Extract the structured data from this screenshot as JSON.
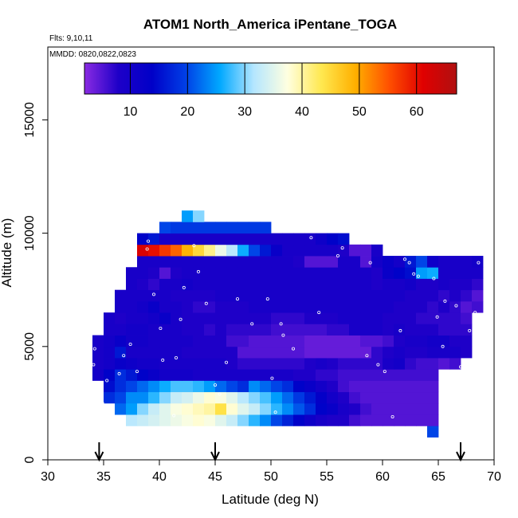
{
  "chart_data": {
    "type": "heatmap",
    "title": "ATOM1 North_America iPentane_TOGA",
    "flights_label": "Flts: 9,10,11",
    "dates_label": "MMDD: 0820,0822,0823",
    "xlabel": "Latitude (deg N)",
    "ylabel": "Altitude (m)",
    "xlim": [
      30,
      70
    ],
    "ylim": [
      0,
      17500
    ],
    "x_ticks": [
      30,
      35,
      40,
      45,
      50,
      55,
      60,
      65,
      70
    ],
    "y_ticks": [
      0,
      5000,
      10000,
      15000
    ],
    "colorbar": {
      "range": [
        2,
        67
      ],
      "ticks": [
        10,
        20,
        30,
        40,
        50,
        60
      ],
      "colors": [
        "#8a2be2",
        "#1e00c8",
        "#0000c8",
        "#0040e6",
        "#00a8ff",
        "#b4e6ff",
        "#ffffe0",
        "#ffe850",
        "#ffb000",
        "#ff5000",
        "#e00000",
        "#b01010"
      ]
    },
    "arrow_latitudes": [
      34.6,
      45.0,
      67.0
    ],
    "cell_size": {
      "lat": 1.0,
      "alt_m": 500
    },
    "rows": [
      {
        "alt": 1250,
        "lat_start": 64,
        "values": [
          20
        ]
      },
      {
        "alt": 1750,
        "lat_start": 37,
        "values": [
          32,
          33,
          34,
          35,
          36,
          37,
          38,
          37,
          35,
          33,
          30,
          27,
          24,
          20,
          17,
          14,
          11,
          9,
          8,
          8,
          6,
          5,
          5,
          5,
          5,
          5,
          5,
          5
        ]
      },
      {
        "alt": 2250,
        "lat_start": 36,
        "values": [
          22,
          25,
          30,
          33,
          35,
          37,
          38,
          39,
          40,
          44,
          38,
          35,
          33,
          30,
          27,
          24,
          21,
          18,
          14,
          12,
          9,
          8,
          6,
          5,
          5,
          5,
          5,
          5,
          5
        ]
      },
      {
        "alt": 2750,
        "lat_start": 35,
        "values": [
          18,
          20,
          24,
          24,
          27,
          30,
          33,
          34,
          36,
          38,
          37,
          35,
          32,
          30,
          28,
          25,
          22,
          19,
          16,
          13,
          10,
          8,
          6,
          5,
          5,
          5,
          5,
          5,
          5,
          5
        ]
      },
      {
        "alt": 3250,
        "lat_start": 35,
        "values": [
          15,
          18,
          20,
          22,
          24,
          26,
          28,
          28,
          27,
          25,
          22,
          20,
          18,
          24,
          22,
          20,
          18,
          14,
          12,
          10,
          8,
          6,
          5,
          5,
          5,
          5,
          5,
          5,
          5,
          5
        ]
      },
      {
        "alt": 3750,
        "lat_start": 34,
        "values": [
          10,
          14,
          18,
          16,
          14,
          12,
          10,
          10,
          10,
          9,
          9,
          9,
          9,
          9,
          9,
          9,
          9,
          9,
          8,
          8,
          7,
          7,
          6,
          6,
          6,
          6,
          6,
          6,
          6,
          6,
          6
        ]
      },
      {
        "alt": 4250,
        "lat_start": 34,
        "values": [
          9,
          10,
          12,
          11,
          10,
          10,
          9,
          9,
          9,
          9,
          9,
          9,
          8,
          7,
          7,
          7,
          7,
          7,
          7,
          8,
          9,
          8,
          7,
          7,
          7,
          7,
          9,
          10,
          7,
          6,
          6,
          5,
          6
        ]
      },
      {
        "alt": 4750,
        "lat_start": 34,
        "values": [
          9,
          10,
          16,
          9,
          9,
          9,
          9,
          9,
          8,
          8,
          8,
          8,
          8,
          5,
          5,
          5,
          5,
          5,
          5,
          4,
          4,
          4,
          4,
          4,
          4,
          7,
          8,
          9,
          8,
          8,
          9,
          9,
          9,
          8
        ]
      },
      {
        "alt": 5250,
        "lat_start": 34,
        "values": [
          9,
          10,
          12,
          10,
          10,
          9,
          9,
          9,
          9,
          8,
          8,
          8,
          6,
          6,
          5,
          5,
          5,
          5,
          5,
          4,
          4,
          4,
          4,
          4,
          5,
          5,
          6,
          8,
          9,
          9,
          10,
          10,
          8,
          8
        ]
      },
      {
        "alt": 5750,
        "lat_start": 35,
        "values": [
          9,
          9,
          10,
          10,
          9,
          9,
          9,
          8,
          8,
          7,
          8,
          7,
          7,
          7,
          7,
          6,
          6,
          6,
          6,
          6,
          7,
          7,
          9,
          9,
          9,
          8,
          9,
          8,
          8,
          8,
          7,
          7,
          7
        ]
      },
      {
        "alt": 6250,
        "lat_start": 35,
        "values": [
          9,
          8,
          9,
          9,
          10,
          12,
          9,
          8,
          8,
          8,
          8,
          8,
          8,
          8,
          8,
          7,
          7,
          7,
          8,
          8,
          8,
          9,
          9,
          9,
          9,
          8,
          8,
          8,
          7,
          7,
          7,
          7,
          6
        ]
      },
      {
        "alt": 6750,
        "lat_start": 36,
        "values": [
          9,
          9,
          10,
          12,
          9,
          9,
          8,
          7,
          7,
          8,
          8,
          8,
          9,
          9,
          9,
          9,
          9,
          9,
          9,
          9,
          9,
          9,
          9,
          9,
          9,
          8,
          8,
          8,
          7,
          8,
          7,
          5,
          6
        ]
      },
      {
        "alt": 7250,
        "lat_start": 36,
        "values": [
          9,
          9,
          9,
          9,
          9,
          8,
          8,
          8,
          8,
          9,
          9,
          9,
          9,
          9,
          9,
          9,
          9,
          9,
          9,
          9,
          9,
          9,
          9,
          9,
          9,
          9,
          8,
          8,
          8,
          7,
          8,
          7,
          5
        ]
      },
      {
        "alt": 7750,
        "lat_start": 37,
        "values": [
          9,
          8,
          7,
          9,
          9,
          10,
          9,
          9,
          9,
          9,
          9,
          9,
          9,
          9,
          9,
          9,
          9,
          9,
          9,
          9,
          9,
          9,
          8,
          9,
          9,
          10,
          8,
          8,
          9,
          8,
          8,
          7
        ]
      },
      {
        "alt": 8250,
        "lat_start": 37,
        "values": [
          9,
          9,
          8,
          5,
          8,
          9,
          9,
          9,
          9,
          9,
          9,
          9,
          9,
          9,
          9,
          9,
          9,
          9,
          9,
          9,
          9,
          9,
          8,
          12,
          14,
          15,
          25,
          26,
          9,
          9,
          9,
          9
        ]
      },
      {
        "alt": 8750,
        "lat_start": 38,
        "values": [
          9,
          9,
          9,
          9,
          9,
          9,
          9,
          9,
          9,
          9,
          9,
          9,
          9,
          9,
          8,
          5,
          5,
          5,
          9,
          9,
          5,
          10,
          12,
          10,
          16,
          20,
          11,
          9,
          9,
          9,
          10
        ]
      },
      {
        "alt": 9250,
        "lat_start": 38,
        "values": [
          62,
          60,
          57,
          54,
          49,
          45,
          41,
          36,
          32,
          26,
          20,
          16,
          12,
          9,
          9,
          9,
          9,
          9,
          8,
          5,
          5,
          9
        ]
      },
      {
        "alt": 9750,
        "lat_start": 38,
        "values": [
          14,
          16,
          9,
          9,
          9,
          9,
          9,
          9,
          9,
          9,
          9,
          9,
          9,
          9,
          9,
          9,
          11,
          14,
          15
        ]
      },
      {
        "alt": 10250,
        "lat_start": 40,
        "values": [
          20,
          19,
          19,
          19,
          19,
          19,
          19,
          19,
          19,
          19
        ]
      },
      {
        "alt": 10750,
        "lat_start": 42,
        "values": [
          25,
          30
        ]
      }
    ],
    "sample_points": [
      [
        34.2,
        4900
      ],
      [
        34.1,
        4200
      ],
      [
        34.5,
        3200
      ],
      [
        34.9,
        2500
      ],
      [
        35.3,
        3500
      ],
      [
        35.6,
        1950
      ],
      [
        36.4,
        3800
      ],
      [
        36.8,
        4600
      ],
      [
        37.4,
        5100
      ],
      [
        38.0,
        3900
      ],
      [
        38.9,
        9300
      ],
      [
        39.0,
        9650
      ],
      [
        39.5,
        7300
      ],
      [
        40.1,
        5800
      ],
      [
        40.3,
        4400
      ],
      [
        41.3,
        1950
      ],
      [
        41.5,
        4500
      ],
      [
        41.9,
        6200
      ],
      [
        42.2,
        7600
      ],
      [
        43.1,
        9450
      ],
      [
        43.5,
        8300
      ],
      [
        44.2,
        6900
      ],
      [
        45.0,
        3300
      ],
      [
        45.4,
        2900
      ],
      [
        46.0,
        4300
      ],
      [
        47.0,
        7100
      ],
      [
        48.3,
        6000
      ],
      [
        49.7,
        7100
      ],
      [
        50.1,
        3600
      ],
      [
        50.4,
        2100
      ],
      [
        50.9,
        6000
      ],
      [
        51.1,
        5500
      ],
      [
        52.0,
        4900
      ],
      [
        53.6,
        9800
      ],
      [
        54.3,
        6500
      ],
      [
        56.0,
        9000
      ],
      [
        56.4,
        9350
      ],
      [
        58.6,
        4600
      ],
      [
        58.9,
        8700
      ],
      [
        60.2,
        3900
      ],
      [
        59.6,
        4200
      ],
      [
        60.9,
        1900
      ],
      [
        61.6,
        5700
      ],
      [
        62.0,
        8850
      ],
      [
        62.4,
        8700
      ],
      [
        62.8,
        8200
      ],
      [
        63.2,
        8100
      ],
      [
        64.6,
        8000
      ],
      [
        64.9,
        6300
      ],
      [
        65.4,
        5000
      ],
      [
        65.6,
        7000
      ],
      [
        66.6,
        6800
      ],
      [
        67.0,
        4100
      ],
      [
        67.8,
        5700
      ],
      [
        68.3,
        6500
      ],
      [
        68.6,
        8700
      ]
    ]
  }
}
